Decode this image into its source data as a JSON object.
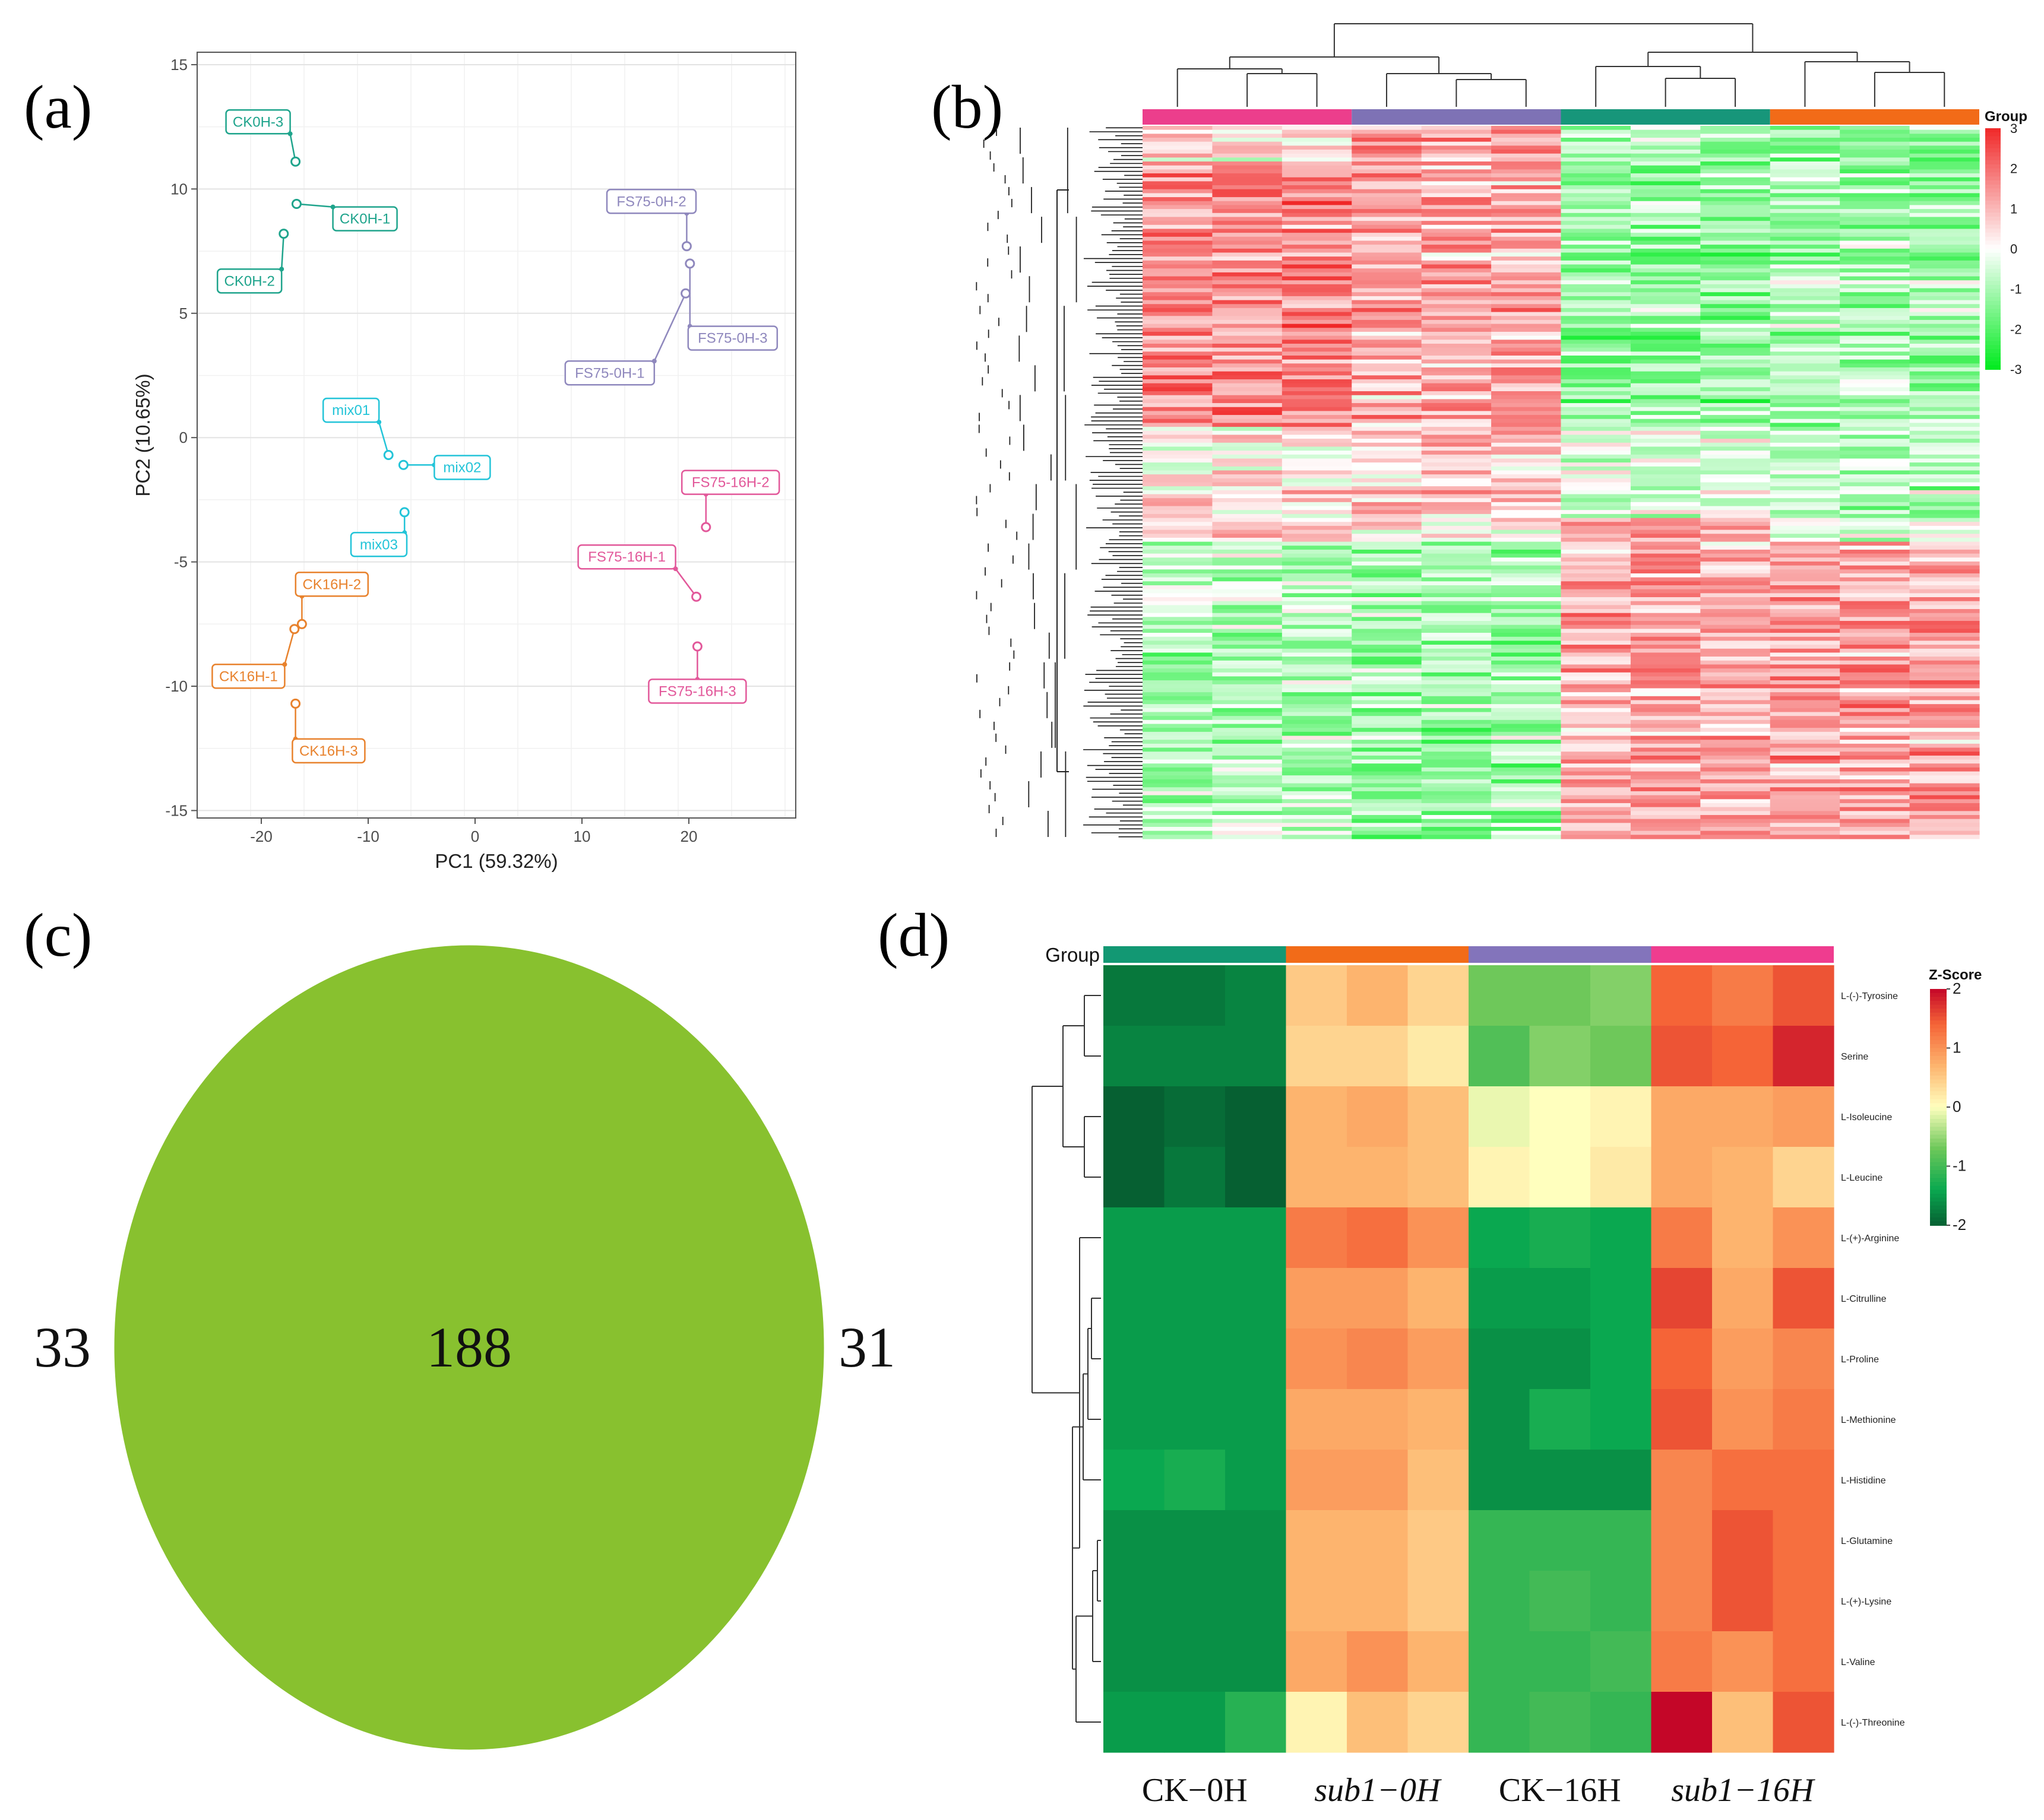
{
  "panel_labels": [
    "(a)",
    "(b)",
    "(c)",
    "(d)"
  ],
  "chart_data": [
    {
      "id": "a",
      "type": "scatter",
      "title": "",
      "xlabel": "PC1 (59.32%)",
      "ylabel": "PC2 (10.65%)",
      "xlim": [
        -26,
        30
      ],
      "ylim": [
        -15.3,
        15.5
      ],
      "xticks": [
        -20,
        -10,
        0,
        10,
        20
      ],
      "yticks": [
        -15,
        -10,
        -5,
        0,
        5,
        10,
        15
      ],
      "grid": true,
      "points": [
        {
          "label": "CK0H-3",
          "x": -16.8,
          "y": 11.1,
          "color": "#1fa48c",
          "lx": -20.3,
          "ly": 12.7
        },
        {
          "label": "CK0H-1",
          "x": -16.7,
          "y": 9.4,
          "color": "#1fa48c",
          "lx": -10.3,
          "ly": 8.8
        },
        {
          "label": "CK0H-2",
          "x": -17.9,
          "y": 8.2,
          "color": "#1fa48c",
          "lx": -21.1,
          "ly": 6.3
        },
        {
          "label": "FS75-0H-2",
          "x": 19.8,
          "y": 7.7,
          "color": "#8f88bd",
          "lx": 16.5,
          "ly": 9.5
        },
        {
          "label": "FS75-0H-3",
          "x": 20.1,
          "y": 7.0,
          "color": "#8f88bd",
          "lx": 24.1,
          "ly": 4.0
        },
        {
          "label": "FS75-0H-1",
          "x": 19.7,
          "y": 5.8,
          "color": "#8f88bd",
          "lx": 12.6,
          "ly": 2.6
        },
        {
          "label": "mix01",
          "x": -8.1,
          "y": -0.7,
          "color": "#23c4d8",
          "lx": -11.6,
          "ly": 1.1
        },
        {
          "label": "mix02",
          "x": -6.7,
          "y": -1.1,
          "color": "#23c4d8",
          "lx": -1.2,
          "ly": -1.2
        },
        {
          "label": "mix03",
          "x": -6.6,
          "y": -3.0,
          "color": "#23c4d8",
          "lx": -9.0,
          "ly": -4.3
        },
        {
          "label": "FS75-16H-2",
          "x": 21.6,
          "y": -3.6,
          "color": "#e2589a",
          "lx": 23.9,
          "ly": -1.8
        },
        {
          "label": "FS75-16H-1",
          "x": 20.7,
          "y": -6.4,
          "color": "#e2589a",
          "lx": 14.2,
          "ly": -4.8
        },
        {
          "label": "FS75-16H-3",
          "x": 20.8,
          "y": -8.4,
          "color": "#e2589a",
          "lx": 20.8,
          "ly": -10.2
        },
        {
          "label": "CK16H-2",
          "x": -16.2,
          "y": -7.5,
          "color": "#e8822d",
          "lx": -13.4,
          "ly": -5.9
        },
        {
          "label": "CK16H-1",
          "x": -16.9,
          "y": -7.7,
          "color": "#e8822d",
          "lx": -21.2,
          "ly": -9.6
        },
        {
          "label": "CK16H-3",
          "x": -16.8,
          "y": -10.7,
          "color": "#e8822d",
          "lx": -13.7,
          "ly": -12.6
        }
      ]
    },
    {
      "id": "b",
      "type": "heatmap",
      "legend_title": "Group",
      "scale_ticks": [
        3,
        2,
        1,
        0,
        -1,
        -2,
        -3
      ],
      "scale_range": [
        -3,
        3
      ],
      "group_colors": [
        "#ec3e8c",
        "#7e72b5",
        "#17967a",
        "#f26b18"
      ],
      "columns": 12,
      "description_rows": 180
    },
    {
      "id": "c",
      "type": "venn",
      "sets": [
        {
          "only": 33,
          "color": "#f88686"
        },
        {
          "only": 31,
          "color": "#43fb74"
        }
      ],
      "intersection": 188,
      "intersection_color": "#88c12f"
    },
    {
      "id": "d",
      "type": "heatmap",
      "legend_title": "Z-Score",
      "group_label": "Group",
      "scale_ticks": [
        2,
        1,
        0,
        -1,
        -2
      ],
      "scale_range": [
        -2,
        2
      ],
      "groups": [
        "CK−0H",
        "sub1−0H",
        "CK−16H",
        "sub1−16H"
      ],
      "group_colors": [
        "#129873",
        "#f26b18",
        "#8374bb",
        "#ef3c8f"
      ],
      "rows": [
        "L-(-)-Tyrosine",
        "Serine",
        "L-Isoleucine",
        "L-Leucine",
        "L-(+)-Arginine",
        "L-Citrulline",
        "L-Proline",
        "L-Methionine",
        "L-Histidine",
        "L-Glutamine",
        "L-(+)-Lysine",
        "L-Valine",
        "L-(-)-Threonine"
      ],
      "values": [
        [
          -1.8,
          -1.8,
          -1.7,
          0.5,
          0.7,
          0.4,
          -0.7,
          -0.7,
          -0.6,
          1.4,
          1.2,
          1.5
        ],
        [
          -1.7,
          -1.7,
          -1.7,
          0.4,
          0.4,
          0.2,
          -0.9,
          -0.6,
          -0.7,
          1.5,
          1.4,
          1.8
        ],
        [
          -2.0,
          -1.9,
          -2.0,
          0.7,
          0.8,
          0.6,
          -0.1,
          0.0,
          0.1,
          0.8,
          0.8,
          0.9
        ],
        [
          -2.0,
          -1.8,
          -2.0,
          0.7,
          0.7,
          0.6,
          0.1,
          0.0,
          0.2,
          0.8,
          0.7,
          0.4
        ],
        [
          -1.5,
          -1.5,
          -1.5,
          1.2,
          1.3,
          1.0,
          -1.4,
          -1.3,
          -1.4,
          1.2,
          0.7,
          1.0
        ],
        [
          -1.5,
          -1.5,
          -1.5,
          0.9,
          0.9,
          0.7,
          -1.5,
          -1.5,
          -1.4,
          1.6,
          0.8,
          1.5
        ],
        [
          -1.5,
          -1.5,
          -1.5,
          1.0,
          1.1,
          0.9,
          -1.6,
          -1.6,
          -1.4,
          1.4,
          0.9,
          1.1
        ],
        [
          -1.5,
          -1.5,
          -1.5,
          0.8,
          0.8,
          0.7,
          -1.6,
          -1.3,
          -1.4,
          1.5,
          1.0,
          1.2
        ],
        [
          -1.4,
          -1.3,
          -1.5,
          0.9,
          0.9,
          0.6,
          -1.6,
          -1.6,
          -1.6,
          1.1,
          1.3,
          1.3
        ],
        [
          -1.6,
          -1.6,
          -1.6,
          0.7,
          0.7,
          0.5,
          -1.1,
          -1.1,
          -1.1,
          1.1,
          1.5,
          1.3
        ],
        [
          -1.6,
          -1.6,
          -1.6,
          0.7,
          0.7,
          0.5,
          -1.1,
          -1.0,
          -1.1,
          1.1,
          1.5,
          1.3
        ],
        [
          -1.6,
          -1.6,
          -1.6,
          0.8,
          1.0,
          0.7,
          -1.1,
          -1.1,
          -1.0,
          1.2,
          1.0,
          1.3
        ],
        [
          -1.5,
          -1.5,
          -1.2,
          0.1,
          0.6,
          0.4,
          -1.1,
          -1.0,
          -1.1,
          2.0,
          0.6,
          1.5
        ]
      ]
    }
  ]
}
